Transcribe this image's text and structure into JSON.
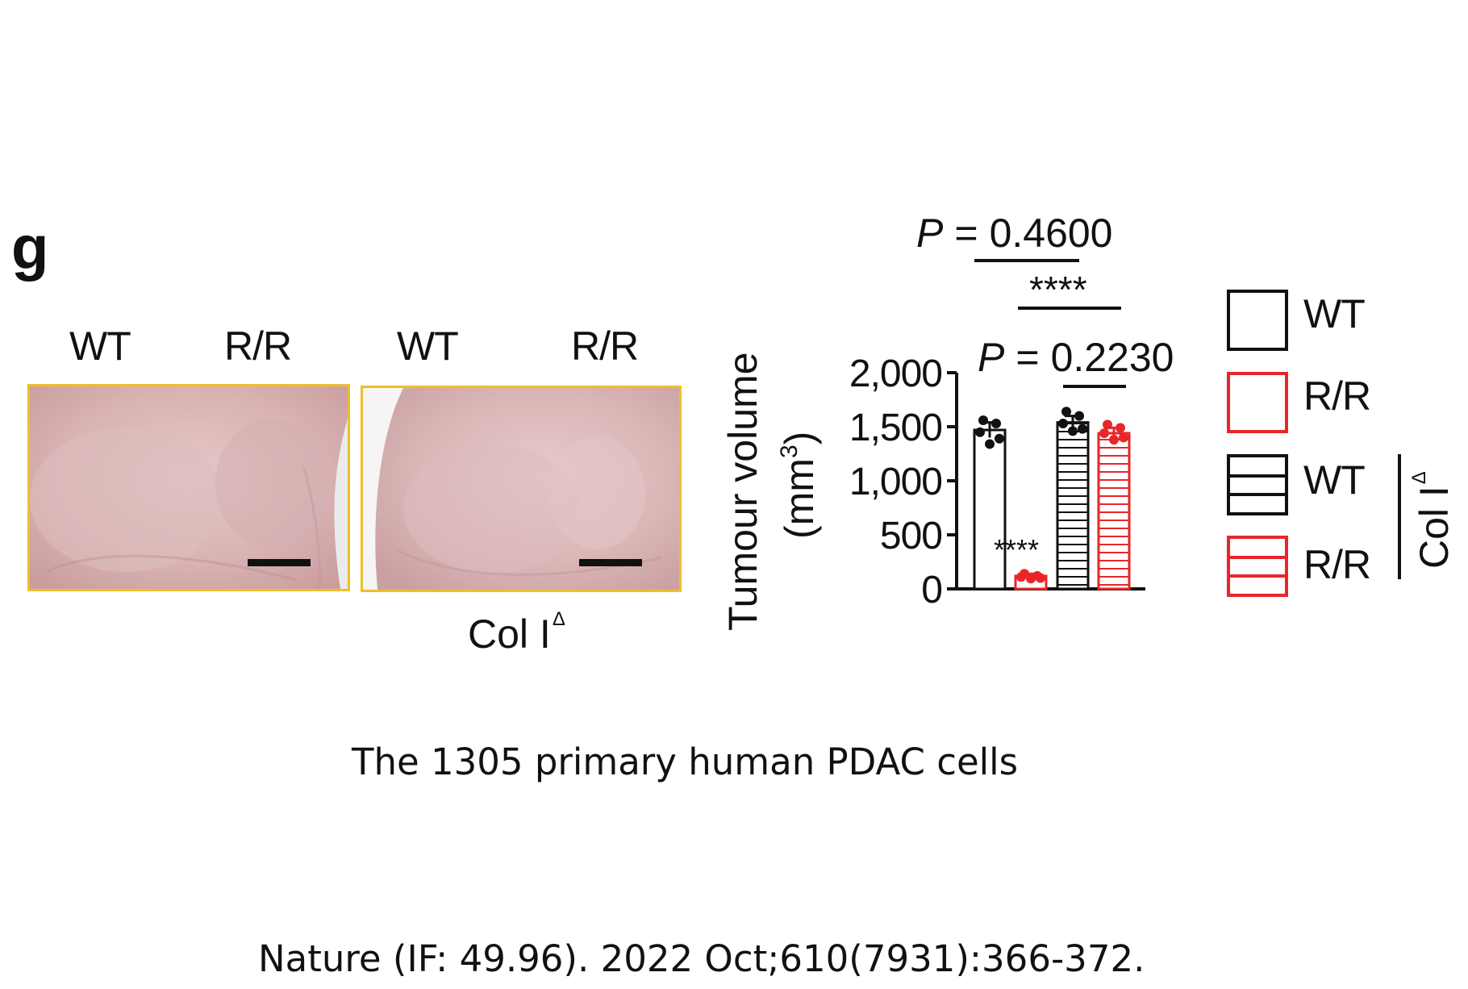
{
  "figure": {
    "panel_letter": "g",
    "photos": [
      {
        "labels": [
          "WT",
          "R/R"
        ],
        "group": ""
      },
      {
        "labels": [
          "WT",
          "R/R"
        ],
        "group": "Col I",
        "group_superscript": "Δ"
      }
    ]
  },
  "chart_data": {
    "type": "bar",
    "ylabel_line1": "Tumour volume",
    "ylabel_line2": "(mm",
    "ylabel_superscript": "3",
    "ylabel_end": ")",
    "ylim": [
      0,
      2000
    ],
    "yticks": [
      "0",
      "500",
      "1,000",
      "1,500",
      "2,000"
    ],
    "ytick_values": [
      0,
      500,
      1000,
      1500,
      2000
    ],
    "categories": [
      "WT",
      "R/R",
      "WT Col IΔ",
      "R/R Col IΔ"
    ],
    "values": [
      1470,
      120,
      1540,
      1440
    ],
    "errors": [
      70,
      20,
      60,
      50
    ],
    "points": [
      [
        1560,
        1530,
        1450,
        1390,
        1340
      ],
      [
        140,
        120,
        110,
        100,
        95
      ],
      [
        1640,
        1600,
        1530,
        1480,
        1460
      ],
      [
        1520,
        1490,
        1440,
        1400,
        1380
      ]
    ],
    "colors": [
      "#111111",
      "#e8262a",
      "#111111",
      "#e8262a"
    ],
    "hatched": [
      false,
      false,
      true,
      true
    ],
    "annotations": {
      "p_top": "0.4600",
      "p_mid": "0.2230",
      "p_prefix": "P",
      "p_eq": "=",
      "stars_bracket": "****",
      "stars_bar": "****"
    },
    "legend": {
      "items": [
        "WT",
        "R/R",
        "WT",
        "R/R"
      ],
      "group": "Col I",
      "group_superscript": "Δ"
    }
  },
  "caption": {
    "line1": "The 1305 primary human PDAC cells",
    "line2": "Nature (IF: 49.96). 2022 Oct;610(7931):366-372."
  }
}
